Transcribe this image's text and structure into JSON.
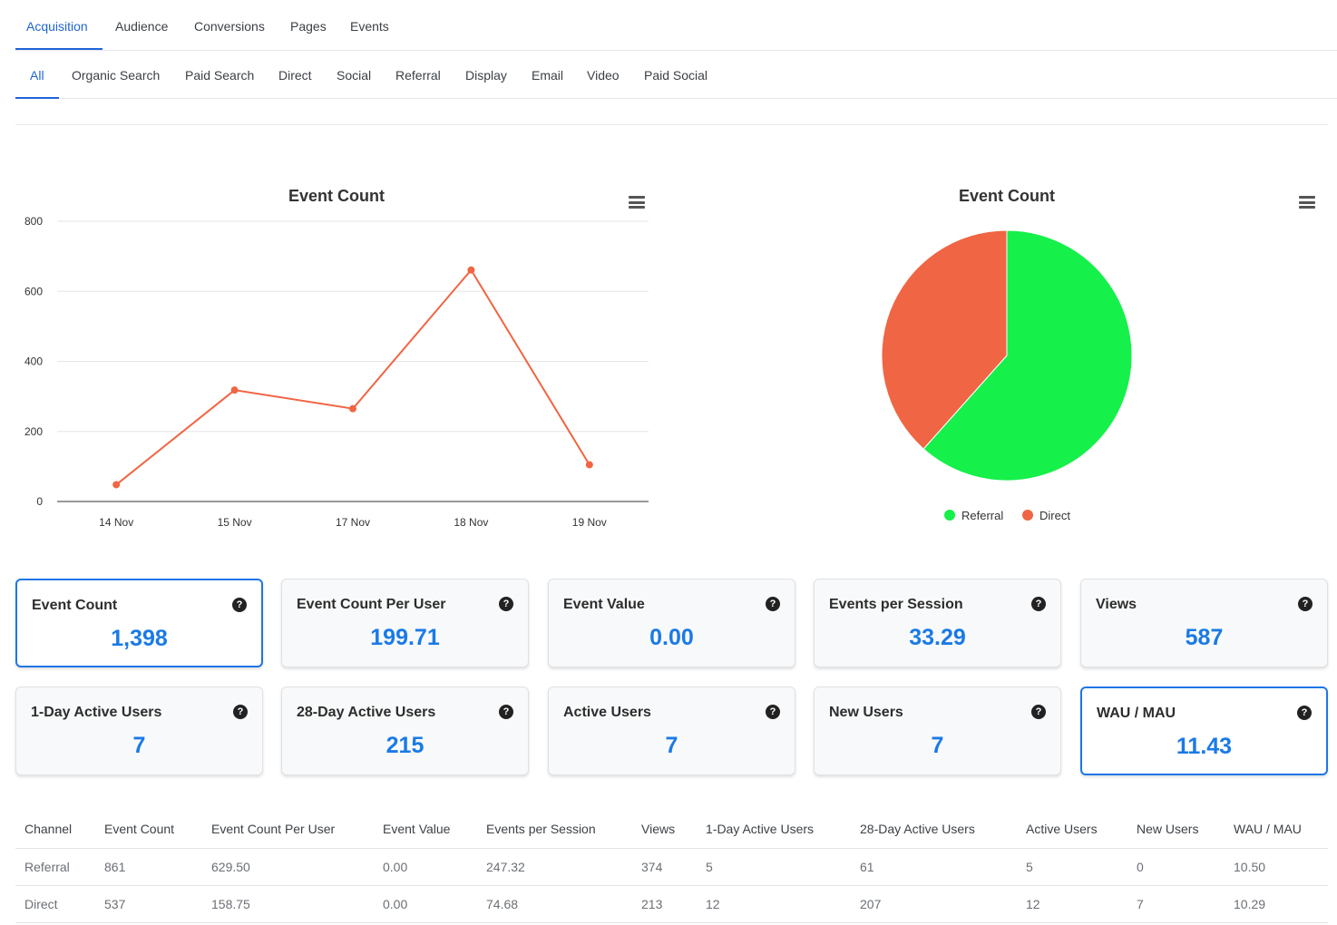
{
  "tabs_main": [
    {
      "label": "Acquisition",
      "active": true
    },
    {
      "label": "Audience",
      "active": false
    },
    {
      "label": "Conversions",
      "active": false
    },
    {
      "label": "Pages",
      "active": false
    },
    {
      "label": "Events",
      "active": false
    }
  ],
  "tabs_sub": [
    {
      "label": "All",
      "active": true
    },
    {
      "label": "Organic Search",
      "active": false
    },
    {
      "label": "Paid Search",
      "active": false
    },
    {
      "label": "Direct",
      "active": false
    },
    {
      "label": "Social",
      "active": false
    },
    {
      "label": "Referral",
      "active": false
    },
    {
      "label": "Display",
      "active": false
    },
    {
      "label": "Email",
      "active": false
    },
    {
      "label": "Video",
      "active": false
    },
    {
      "label": "Paid Social",
      "active": false
    }
  ],
  "colors": {
    "accent": "#1f64d6",
    "value_blue": "#1a7ae6",
    "line_series": "#f06543",
    "pie_referral": "#15f04a",
    "pie_direct": "#f06543"
  },
  "icons": {
    "menu": "hamburger-menu-icon",
    "help": "question-circle-icon"
  },
  "chart_data": [
    {
      "type": "line",
      "title": "Event Count",
      "categories": [
        "14 Nov",
        "15 Nov",
        "17 Nov",
        "18 Nov",
        "19 Nov"
      ],
      "series": [
        {
          "values": [
            48,
            318,
            265,
            661,
            105
          ]
        }
      ],
      "ylim": [
        0,
        800
      ],
      "yticks": [
        "0",
        "200",
        "400",
        "600",
        "800"
      ],
      "grid": true
    },
    {
      "type": "pie",
      "title": "Event Count",
      "labels": [
        "Referral",
        "Direct"
      ],
      "values": [
        861,
        537
      ],
      "legend": "bottom"
    }
  ],
  "cards": [
    {
      "label": "Event Count",
      "value": "1,398",
      "selected": true
    },
    {
      "label": "Event Count Per User",
      "value": "199.71",
      "selected": false
    },
    {
      "label": "Event Value",
      "value": "0.00",
      "selected": false
    },
    {
      "label": "Events per Session",
      "value": "33.29",
      "selected": false
    },
    {
      "label": "Views",
      "value": "587",
      "selected": false
    },
    {
      "label": "1-Day Active Users",
      "value": "7",
      "selected": false
    },
    {
      "label": "28-Day Active Users",
      "value": "215",
      "selected": false
    },
    {
      "label": "Active Users",
      "value": "7",
      "selected": false
    },
    {
      "label": "New Users",
      "value": "7",
      "selected": false
    },
    {
      "label": "WAU / MAU",
      "value": "11.43",
      "selected": true
    }
  ],
  "table": {
    "headers": [
      "Channel",
      "Event Count",
      "Event Count Per User",
      "Event Value",
      "Events per Session",
      "Views",
      "1-Day Active Users",
      "28-Day Active Users",
      "Active Users",
      "New Users",
      "WAU / MAU"
    ],
    "rows": [
      [
        "Referral",
        "861",
        "629.50",
        "0.00",
        "247.32",
        "374",
        "5",
        "61",
        "5",
        "0",
        "10.50"
      ],
      [
        "Direct",
        "537",
        "158.75",
        "0.00",
        "74.68",
        "213",
        "12",
        "207",
        "12",
        "7",
        "10.29"
      ]
    ]
  }
}
